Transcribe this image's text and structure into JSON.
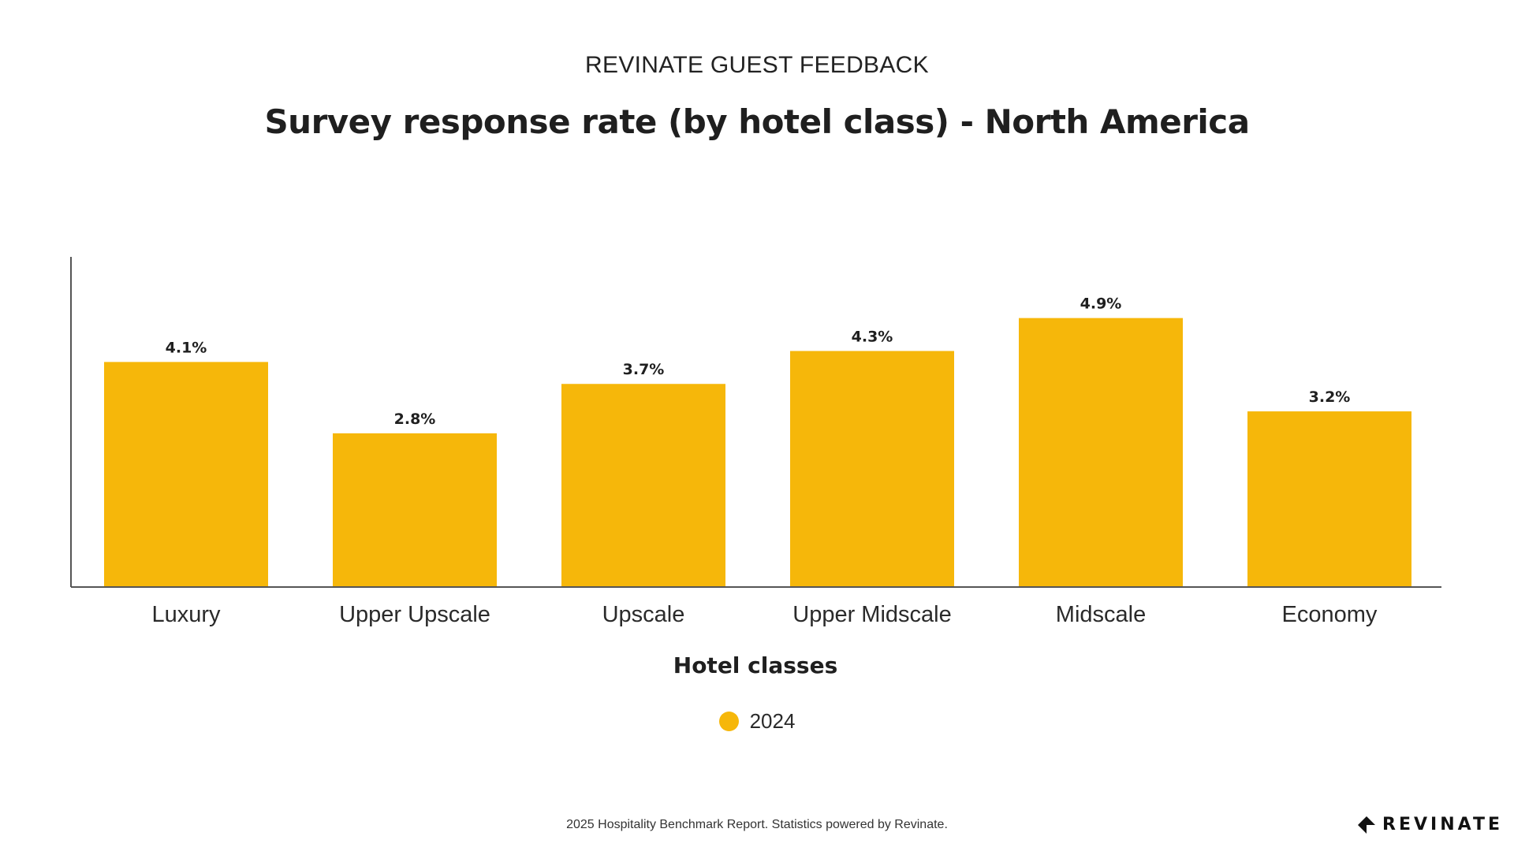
{
  "header": {
    "supertitle": "REVINATE GUEST FEEDBACK"
  },
  "chart_data": {
    "type": "bar",
    "title": "Survey response rate (by hotel class) - North America",
    "xlabel": "Hotel classes",
    "ylabel": "",
    "categories": [
      "Luxury",
      "Upper Upscale",
      "Upscale",
      "Upper Midscale",
      "Midscale",
      "Economy"
    ],
    "series": [
      {
        "name": "2024",
        "values": [
          4.1,
          2.8,
          3.7,
          4.3,
          4.9,
          3.2
        ],
        "labels": [
          "4.1%",
          "2.8%",
          "3.7%",
          "4.3%",
          "4.9%",
          "3.2%"
        ],
        "color": "#F6B70A"
      }
    ],
    "ylim": [
      0,
      6
    ],
    "grid": false,
    "legend": "bottom-center"
  },
  "footer": {
    "text": "2025 Hospitality Benchmark Report. Statistics powered by Revinate."
  },
  "brand": {
    "name": "REVINATE",
    "icon": "revinate-logo-icon"
  },
  "colors": {
    "bar": "#F6B70A",
    "axis": "#555555",
    "text": "#1f1f1f"
  }
}
